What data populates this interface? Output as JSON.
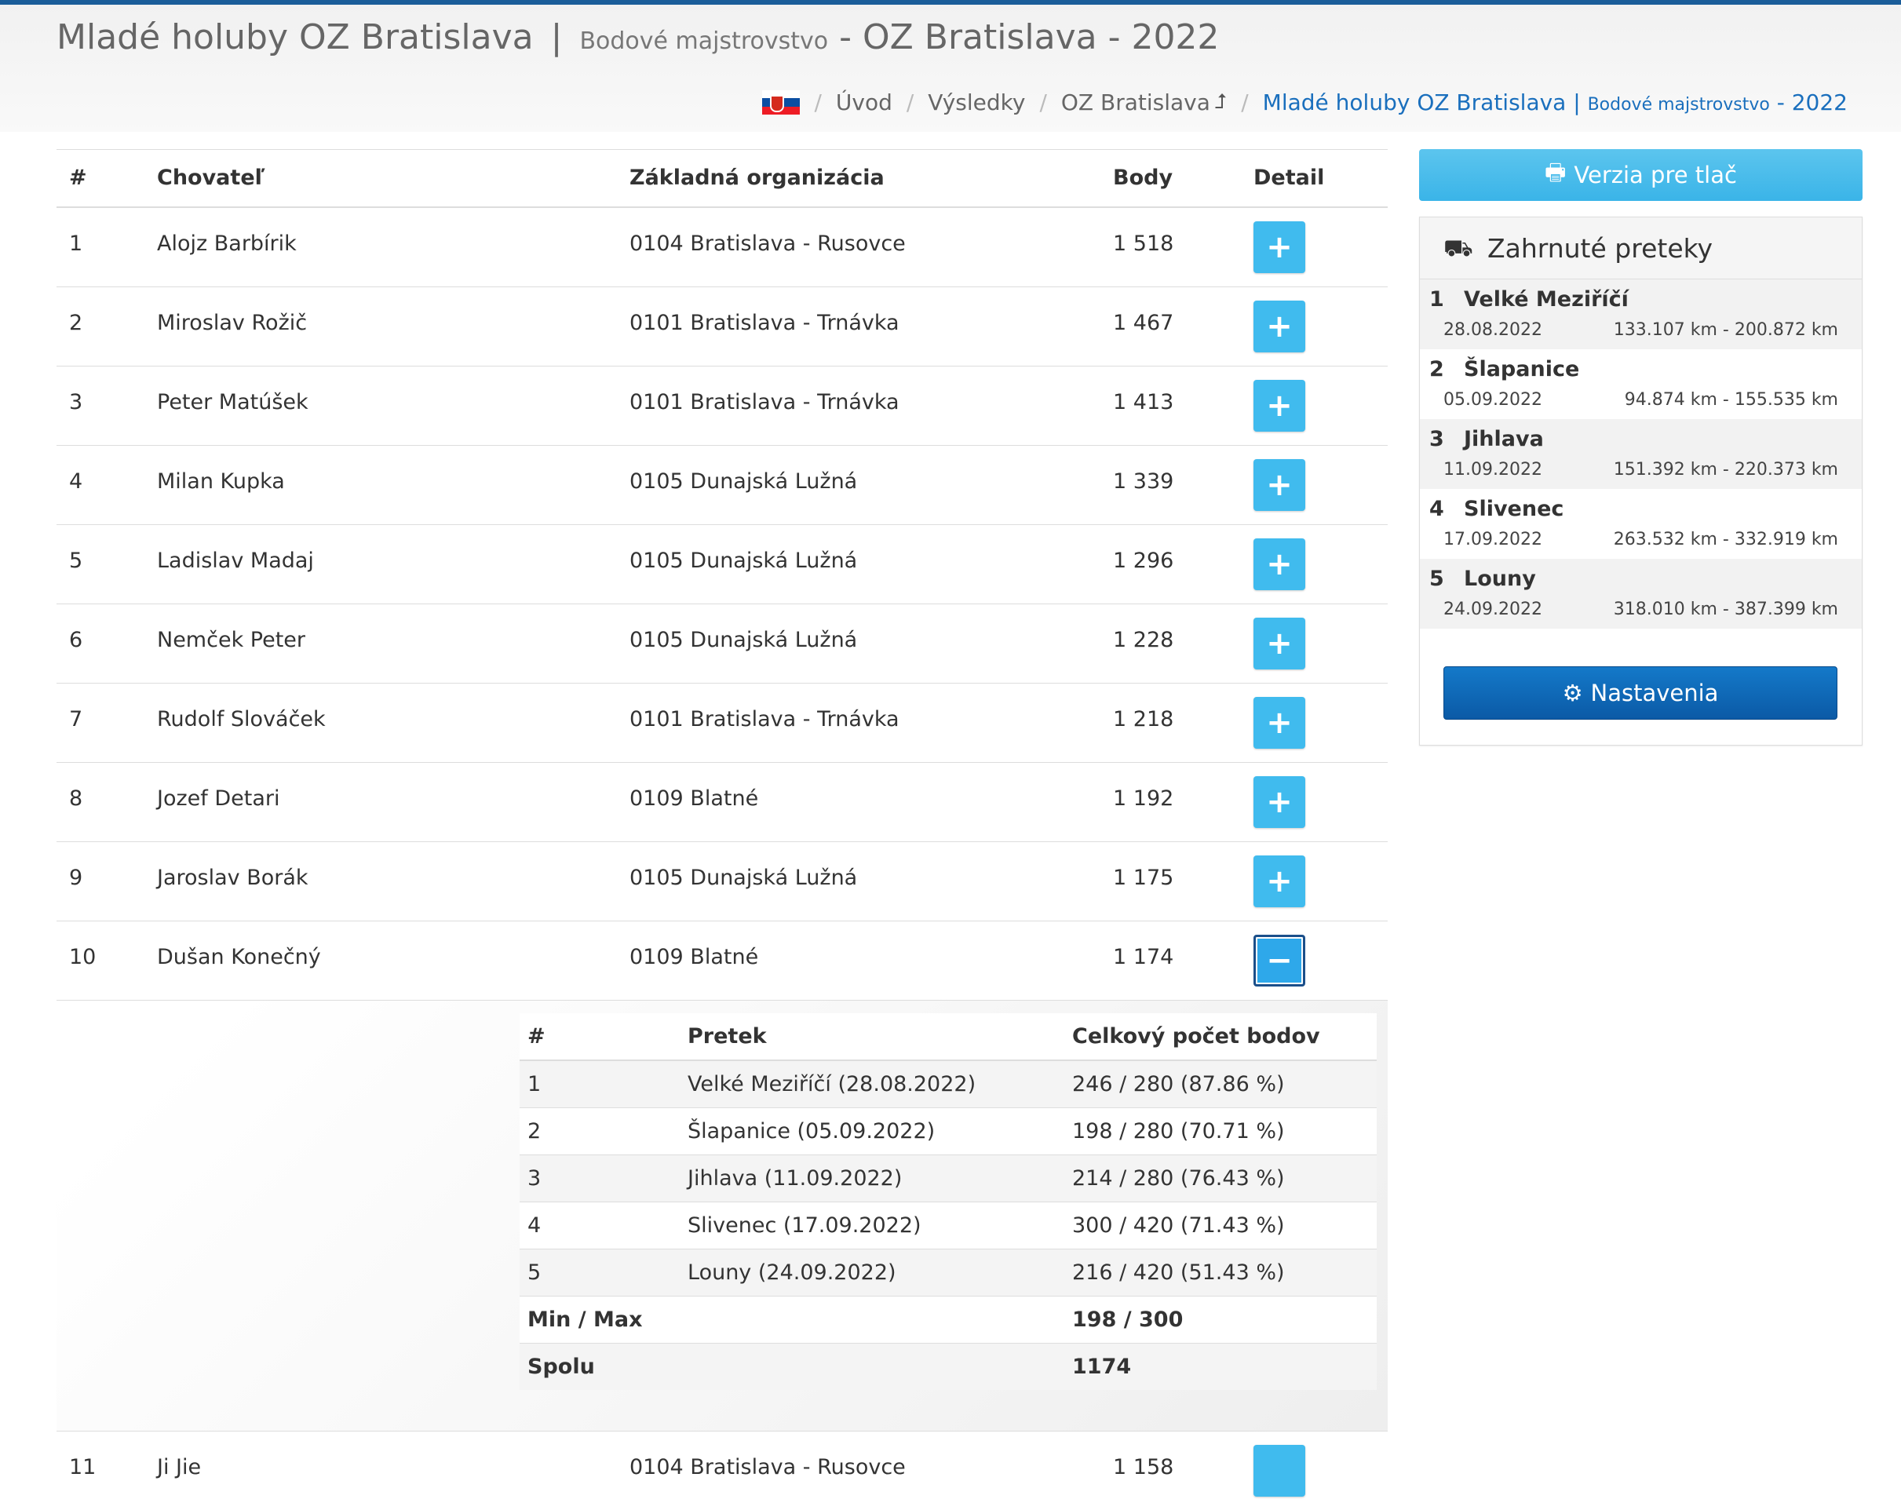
{
  "header": {
    "title_main": "Mladé holuby OZ Bratislava",
    "title_sep": "|",
    "title_sub": "Bodové majstrovstvo",
    "title_tail": "- OZ Bratislava - 2022"
  },
  "breadcrumb": {
    "items": [
      "Úvod",
      "Výsledky",
      "OZ Bratislava"
    ],
    "active_main": "Mladé holuby OZ Bratislava",
    "active_sep": "|",
    "active_sub": "Bodové majstrovstvo",
    "active_tail": "- 2022",
    "flag_colors": [
      "#ffffff",
      "#0b4ea2",
      "#ee1c25"
    ]
  },
  "table": {
    "headers": {
      "rank": "#",
      "name": "Chovateľ",
      "org": "Základná organizácia",
      "points": "Body",
      "detail": "Detail"
    },
    "rows": [
      {
        "rank": "1",
        "name": "Alojz Barbírik",
        "org": "0104 Bratislava - Rusovce",
        "points": "1 518",
        "btn": "+"
      },
      {
        "rank": "2",
        "name": "Miroslav Rožič",
        "org": "0101 Bratislava - Trnávka",
        "points": "1 467",
        "btn": "+"
      },
      {
        "rank": "3",
        "name": "Peter Matúšek",
        "org": "0101 Bratislava - Trnávka",
        "points": "1 413",
        "btn": "+"
      },
      {
        "rank": "4",
        "name": "Milan Kupka",
        "org": "0105 Dunajská Lužná",
        "points": "1 339",
        "btn": "+"
      },
      {
        "rank": "5",
        "name": "Ladislav Madaj",
        "org": "0105 Dunajská Lužná",
        "points": "1 296",
        "btn": "+"
      },
      {
        "rank": "6",
        "name": "Nemček Peter",
        "org": "0105 Dunajská Lužná",
        "points": "1 228",
        "btn": "+"
      },
      {
        "rank": "7",
        "name": "Rudolf Slováček",
        "org": "0101 Bratislava - Trnávka",
        "points": "1 218",
        "btn": "+"
      },
      {
        "rank": "8",
        "name": "Jozef Detari",
        "org": "0109 Blatné",
        "points": "1 192",
        "btn": "+"
      },
      {
        "rank": "9",
        "name": "Jaroslav Borák",
        "org": "0105 Dunajská Lužná",
        "points": "1 175",
        "btn": "+"
      },
      {
        "rank": "10",
        "name": "Dušan Konečný",
        "org": "0109 Blatné",
        "points": "1 174",
        "btn": "−"
      }
    ],
    "next_row": {
      "rank": "11",
      "name": "Ji Jie",
      "org": "0104 Bratislava - Rusovce",
      "points": "1 158"
    }
  },
  "detail": {
    "headers": {
      "rank": "#",
      "race": "Pretek",
      "total": "Celkový počet bodov"
    },
    "rows": [
      {
        "rank": "1",
        "race": "Velké Meziříčí (28.08.2022)",
        "total": "246 / 280 (87.86 %)"
      },
      {
        "rank": "2",
        "race": "Šlapanice (05.09.2022)",
        "total": "198 / 280 (70.71 %)"
      },
      {
        "rank": "3",
        "race": "Jihlava (11.09.2022)",
        "total": "214 / 280 (76.43 %)"
      },
      {
        "rank": "4",
        "race": "Slivenec (17.09.2022)",
        "total": "300 / 420 (71.43 %)"
      },
      {
        "rank": "5",
        "race": "Louny (24.09.2022)",
        "total": "216 / 420 (51.43 %)"
      }
    ],
    "minmax_label": "Min / Max",
    "minmax_value": "198 / 300",
    "sum_label": "Spolu",
    "sum_value": "1174"
  },
  "sidebar": {
    "print_label": "Verzia pre tlač",
    "panel_title": "Zahrnuté preteky",
    "races": [
      {
        "n": "1",
        "name": "Velké Meziříčí",
        "date": "28.08.2022",
        "km": "133.107 km - 200.872 km"
      },
      {
        "n": "2",
        "name": "Šlapanice",
        "date": "05.09.2022",
        "km": "94.874 km - 155.535 km"
      },
      {
        "n": "3",
        "name": "Jihlava",
        "date": "11.09.2022",
        "km": "151.392 km - 220.373 km"
      },
      {
        "n": "4",
        "name": "Slivenec",
        "date": "17.09.2022",
        "km": "263.532 km - 332.919 km"
      },
      {
        "n": "5",
        "name": "Louny",
        "date": "24.09.2022",
        "km": "318.010 km - 387.399 km"
      }
    ],
    "settings_label": "Nastavenia"
  }
}
